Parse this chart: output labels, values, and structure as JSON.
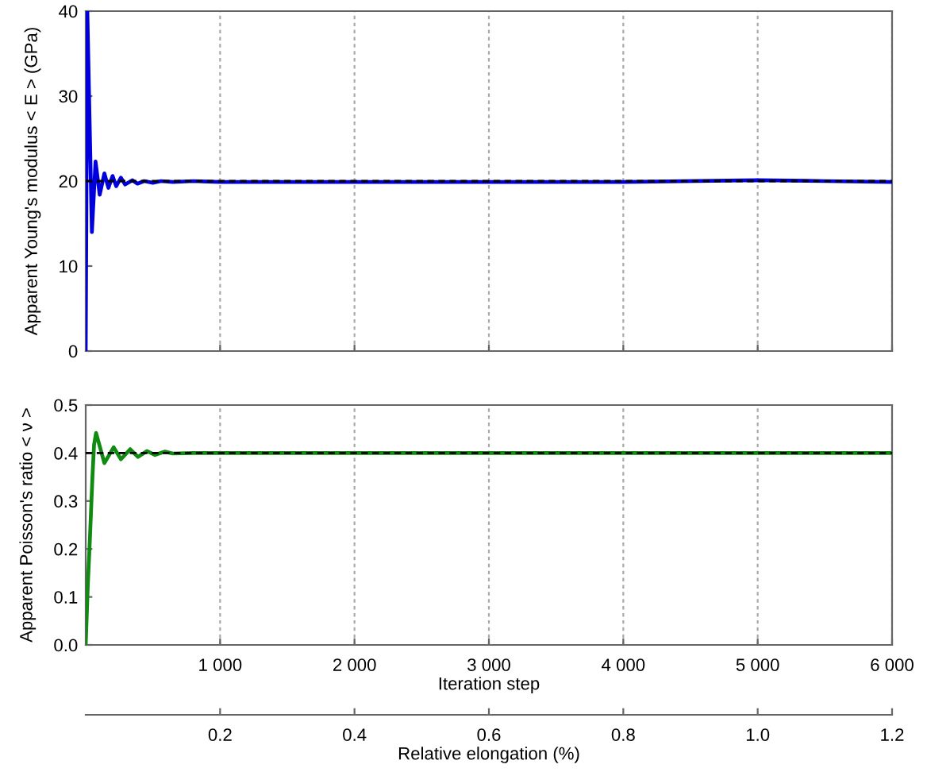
{
  "chart_data": [
    {
      "type": "line",
      "ylabel": "Apparent Young's modulus < E > (GPa)",
      "x": [
        0,
        12,
        46,
        73,
        104,
        139,
        169,
        200,
        227,
        262,
        293,
        347,
        385,
        435,
        500,
        560,
        650,
        800,
        1000,
        2000,
        3000,
        4000,
        5000,
        5500,
        6000
      ],
      "series": [
        {
          "color": "#0000dd",
          "values": [
            0,
            40,
            14,
            22.3,
            18.4,
            20.9,
            19.2,
            20.6,
            19.4,
            20.4,
            19.6,
            20.1,
            19.7,
            20.0,
            19.8,
            20.0,
            19.9,
            20.0,
            19.9,
            19.9,
            19.9,
            19.9,
            20.1,
            20.0,
            19.9
          ]
        }
      ],
      "xlim": [
        0,
        6000
      ],
      "xticks": [
        1000,
        2000,
        3000,
        4000,
        5000,
        6000
      ],
      "ylim": [
        0,
        40
      ],
      "yticks": [
        0,
        10,
        20,
        30,
        40
      ],
      "ref_lines": [
        {
          "axis": "y",
          "value": 20,
          "color": "#000000",
          "line_style": "dashed"
        }
      ],
      "grid": "x",
      "tick_labels": "y",
      "marker": "none",
      "line_style": "solid"
    },
    {
      "type": "line",
      "ylabel": "Apparent Poisson's ratio < ν >",
      "xlabel": "Iteration step",
      "x2label": "Relative elongation (%)",
      "x": [
        0,
        15,
        31,
        50,
        62,
        77,
        139,
        208,
        262,
        331,
        389,
        455,
        516,
        590,
        647,
        800,
        1000,
        2000,
        3000,
        4000,
        5000,
        6000
      ],
      "series": [
        {
          "color": "#108a10",
          "values": [
            0,
            0.12,
            0.22,
            0.35,
            0.417,
            0.442,
            0.379,
            0.412,
            0.387,
            0.408,
            0.392,
            0.404,
            0.396,
            0.403,
            0.399,
            0.4,
            0.4,
            0.4,
            0.4,
            0.4,
            0.4,
            0.4
          ]
        }
      ],
      "xlim": [
        0,
        6000
      ],
      "xticks": [
        {
          "value": 1000,
          "label": "1 000"
        },
        {
          "value": 2000,
          "label": "2 000"
        },
        {
          "value": 3000,
          "label": "3 000"
        },
        {
          "value": 4000,
          "label": "4 000"
        },
        {
          "value": 5000,
          "label": "5 000"
        },
        {
          "value": 6000,
          "label": "6 000"
        }
      ],
      "ylim": [
        0,
        0.5
      ],
      "yticks": [
        {
          "value": 0,
          "label": "0.0"
        },
        0.1,
        0.2,
        0.3,
        0.4,
        0.5
      ],
      "x2lim": [
        0,
        1.2
      ],
      "x2ticks": [
        0.2,
        0.4,
        0.6,
        0.8,
        {
          "value": 1,
          "label": "1.0"
        },
        1.2
      ],
      "ref_lines": [
        {
          "axis": "y",
          "value": 0.4,
          "color": "#000000",
          "line_style": "dashed"
        }
      ],
      "grid": "x",
      "marker": "none",
      "line_style": "solid"
    }
  ]
}
